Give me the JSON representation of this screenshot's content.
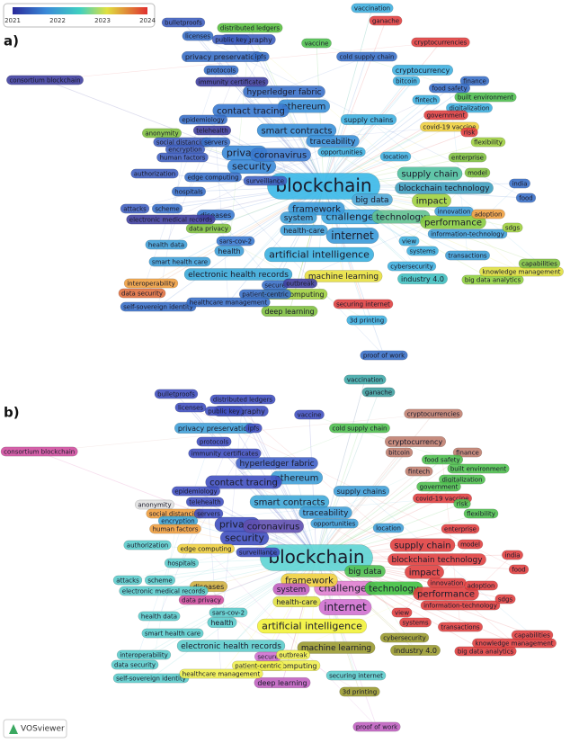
{
  "legend": {
    "ticks": [
      "2021",
      "2022",
      "2023",
      "2024"
    ]
  },
  "panels": [
    {
      "label": "a)",
      "nodes": [
        {
          "label": "blockchain",
          "color": "#3ab8e8"
        },
        {
          "label": "artificial intelligence",
          "color": "#3bb0e0"
        },
        {
          "label": "internet",
          "color": "#3a9ad9"
        },
        {
          "label": "challenges",
          "color": "#40a8e0"
        },
        {
          "label": "framework",
          "color": "#3a9ad9"
        },
        {
          "label": "technology",
          "color": "#60c090"
        },
        {
          "label": "performance",
          "color": "#88cc40"
        },
        {
          "label": "impact",
          "color": "#a0d040"
        },
        {
          "label": "supply chain",
          "color": "#50c0a0"
        },
        {
          "label": "blockchain technology",
          "color": "#40a0c0"
        },
        {
          "label": "security",
          "color": "#3a8ad8"
        },
        {
          "label": "privacy",
          "color": "#3a8ad8"
        },
        {
          "label": "coronavirus",
          "color": "#3a7ad0"
        },
        {
          "label": "smart contracts",
          "color": "#3a90d8"
        },
        {
          "label": "ethereum",
          "color": "#3a90d8"
        },
        {
          "label": "traceability",
          "color": "#3a90d8"
        },
        {
          "label": "contact tracing",
          "color": "#3a7ad0"
        },
        {
          "label": "hyperledger fabric",
          "color": "#3a70c8"
        },
        {
          "label": "big data",
          "color": "#50a8d8"
        },
        {
          "label": "system",
          "color": "#40a0d8"
        },
        {
          "label": "health-care",
          "color": "#40a0d8"
        },
        {
          "label": "electronic health records",
          "color": "#3aa8d8"
        },
        {
          "label": "machine learning",
          "color": "#e8e040"
        },
        {
          "label": "cloud computing",
          "color": "#a0d040"
        },
        {
          "label": "deep learning",
          "color": "#80c040"
        },
        {
          "label": "industry 4.0",
          "color": "#40c0c0"
        },
        {
          "label": "big data analytics",
          "color": "#90d040"
        },
        {
          "label": "knowledge management",
          "color": "#e0e040"
        },
        {
          "label": "cryptocurrency",
          "color": "#40b0e0"
        },
        {
          "label": "bitcoin",
          "color": "#40b0e0"
        },
        {
          "label": "cryptocurrencies",
          "color": "#e04040"
        },
        {
          "label": "vaccination",
          "color": "#40b0e0"
        },
        {
          "label": "ganache",
          "color": "#e04040"
        },
        {
          "label": "distributed ledgers",
          "color": "#5ac040"
        },
        {
          "label": "cryptography",
          "color": "#4060c0"
        },
        {
          "label": "bulletproofs",
          "color": "#4060c0"
        },
        {
          "label": "privacy preservation",
          "color": "#3a70c8"
        },
        {
          "label": "consortium blockchain",
          "color": "#4040a0"
        },
        {
          "label": "anonymity",
          "color": "#80c040"
        },
        {
          "label": "diseases",
          "color": "#3a7ad0"
        },
        {
          "label": "health",
          "color": "#40a0d8"
        },
        {
          "label": "sars-cov-2",
          "color": "#3a7ad0"
        },
        {
          "label": "data privacy",
          "color": "#80c040"
        },
        {
          "label": "data security",
          "color": "#e07040"
        },
        {
          "label": "interoperability",
          "color": "#f0a040"
        },
        {
          "label": "self-sovereign identity",
          "color": "#3a70c8"
        },
        {
          "label": "secure",
          "color": "#3a70c8"
        },
        {
          "label": "securing internet",
          "color": "#e04040"
        },
        {
          "label": "proof of work",
          "color": "#3a70c8"
        },
        {
          "label": "3d printing",
          "color": "#40b0e0"
        },
        {
          "label": "social distancing",
          "color": "#4060c0"
        },
        {
          "label": "encryption",
          "color": "#4060c0"
        },
        {
          "label": "human factors",
          "color": "#4060c0"
        },
        {
          "label": "authorization",
          "color": "#4060c0"
        },
        {
          "label": "electronic medical records",
          "color": "#4040a0"
        },
        {
          "label": "edge computing",
          "color": "#3a70c8"
        },
        {
          "label": "cybersecurity",
          "color": "#40b0e0"
        },
        {
          "label": "information-technology",
          "color": "#40a0d8"
        },
        {
          "label": "covid-19 vaccine",
          "color": "#f0d040"
        },
        {
          "label": "digitalization",
          "color": "#40b0e0"
        },
        {
          "label": "built environment",
          "color": "#50c050"
        },
        {
          "label": "fintech",
          "color": "#40b0e0"
        },
        {
          "label": "government",
          "color": "#e04040"
        },
        {
          "label": "food",
          "color": "#3a70c8"
        },
        {
          "label": "india",
          "color": "#3a70c8"
        },
        {
          "label": "surveillance",
          "color": "#4060c0"
        },
        {
          "label": "cold supply chain",
          "color": "#3a70c8"
        },
        {
          "label": "vaccine",
          "color": "#50c050"
        },
        {
          "label": "protocols",
          "color": "#3a70c8"
        },
        {
          "label": "ipfs",
          "color": "#3a70c8"
        },
        {
          "label": "licenses",
          "color": "#3a70c8"
        },
        {
          "label": "public key",
          "color": "#4060c0"
        },
        {
          "label": "immunity certificates",
          "color": "#4040a0"
        },
        {
          "label": "epidemiology",
          "color": "#3a70c8"
        },
        {
          "label": "telehealth",
          "color": "#4040a0"
        },
        {
          "label": "servers",
          "color": "#3a70c8"
        },
        {
          "label": "hospitals",
          "color": "#3a70c8"
        },
        {
          "label": "scheme",
          "color": "#3a70c8"
        },
        {
          "label": "attacks",
          "color": "#4060c0"
        },
        {
          "label": "health data",
          "color": "#40a0d8"
        },
        {
          "label": "smart health care",
          "color": "#40a0d8"
        },
        {
          "label": "patient-centric",
          "color": "#3a70c8"
        },
        {
          "label": "healthcare management",
          "color": "#3a70c8"
        },
        {
          "label": "outbreak",
          "color": "#4040a0"
        },
        {
          "label": "supply chains",
          "color": "#40b0e0"
        },
        {
          "label": "opportunities",
          "color": "#40b0e0"
        },
        {
          "label": "flexibility",
          "color": "#a0d040"
        },
        {
          "label": "model",
          "color": "#80c040"
        },
        {
          "label": "innovation",
          "color": "#40a0d8"
        },
        {
          "label": "adoption",
          "color": "#f0a040"
        },
        {
          "label": "transactions",
          "color": "#40a0d8"
        },
        {
          "label": "capabilities",
          "color": "#80c040"
        },
        {
          "label": "sdgs",
          "color": "#a0d040"
        },
        {
          "label": "systems",
          "color": "#40b0e0"
        },
        {
          "label": "view",
          "color": "#40b0e0"
        },
        {
          "label": "finance",
          "color": "#3a70c8"
        },
        {
          "label": "risk",
          "color": "#e04040"
        },
        {
          "label": "food safety",
          "color": "#3a70c8"
        },
        {
          "label": "enterprise",
          "color": "#80c040"
        },
        {
          "label": "location",
          "color": "#40b0e0"
        }
      ]
    },
    {
      "label": "b)",
      "nodes": [
        {
          "label": "blockchain",
          "color": "#5dd4d4"
        },
        {
          "label": "artificial intelligence",
          "color": "#f2f23a"
        },
        {
          "label": "internet",
          "color": "#d070d0"
        },
        {
          "label": "challenges",
          "color": "#e080d0"
        },
        {
          "label": "framework",
          "color": "#f0d040"
        },
        {
          "label": "technology",
          "color": "#40c040"
        },
        {
          "label": "performance",
          "color": "#e04040"
        },
        {
          "label": "impact",
          "color": "#e04040"
        },
        {
          "label": "supply chain",
          "color": "#e04040"
        },
        {
          "label": "blockchain technology",
          "color": "#e04040"
        },
        {
          "label": "security",
          "color": "#4050c0"
        },
        {
          "label": "privacy",
          "color": "#4050c0"
        },
        {
          "label": "coronavirus",
          "color": "#6050b0"
        },
        {
          "label": "smart contracts",
          "color": "#40a8d8"
        },
        {
          "label": "ethereum",
          "color": "#40a0d8"
        },
        {
          "label": "traceability",
          "color": "#40a0d8"
        },
        {
          "label": "contact tracing",
          "color": "#4050c0"
        },
        {
          "label": "hyperledger fabric",
          "color": "#4060c8"
        },
        {
          "label": "big data",
          "color": "#50c050"
        },
        {
          "label": "system",
          "color": "#c060c0"
        },
        {
          "label": "health-care",
          "color": "#e0e040"
        },
        {
          "label": "electronic health records",
          "color": "#5ccccc"
        },
        {
          "label": "machine learning",
          "color": "#9a9a30"
        },
        {
          "label": "cloud computing",
          "color": "#f0f050"
        },
        {
          "label": "deep learning",
          "color": "#c060c0"
        },
        {
          "label": "industry 4.0",
          "color": "#9a9a30"
        },
        {
          "label": "big data analytics",
          "color": "#e04040"
        },
        {
          "label": "knowledge management",
          "color": "#e04040"
        },
        {
          "label": "cryptocurrency",
          "color": "#c08070"
        },
        {
          "label": "bitcoin",
          "color": "#c08070"
        },
        {
          "label": "cryptocurrencies",
          "color": "#c08070"
        },
        {
          "label": "vaccination",
          "color": "#40a8a8"
        },
        {
          "label": "ganache",
          "color": "#40a0a0"
        },
        {
          "label": "distributed ledgers",
          "color": "#4050c0"
        },
        {
          "label": "cryptography",
          "color": "#4050c0"
        },
        {
          "label": "bulletproofs",
          "color": "#4050c0"
        },
        {
          "label": "privacy preservation",
          "color": "#40a0d8"
        },
        {
          "label": "consortium blockchain",
          "color": "#d050a0"
        },
        {
          "label": "anonymity",
          "color": "#e0e0e0"
        },
        {
          "label": "diseases",
          "color": "#d0b040"
        },
        {
          "label": "health",
          "color": "#5ccccc"
        },
        {
          "label": "sars-cov-2",
          "color": "#5ccccc"
        },
        {
          "label": "data privacy",
          "color": "#d050a0"
        },
        {
          "label": "data security",
          "color": "#5ccccc"
        },
        {
          "label": "interoperability",
          "color": "#5ccccc"
        },
        {
          "label": "self-sovereign identity",
          "color": "#5ccccc"
        },
        {
          "label": "secure",
          "color": "#d070d0"
        },
        {
          "label": "securing internet",
          "color": "#5ccccc"
        },
        {
          "label": "proof of work",
          "color": "#c060c0"
        },
        {
          "label": "3d printing",
          "color": "#9a9a30"
        },
        {
          "label": "social distancing",
          "color": "#f0a040"
        },
        {
          "label": "encryption",
          "color": "#40a8d8"
        },
        {
          "label": "human factors",
          "color": "#f0a040"
        },
        {
          "label": "authorization",
          "color": "#5ccccc"
        },
        {
          "label": "electronic medical records",
          "color": "#5ccccc"
        },
        {
          "label": "edge computing",
          "color": "#f0d040"
        },
        {
          "label": "cybersecurity",
          "color": "#9a9a30"
        },
        {
          "label": "information-technology",
          "color": "#e04040"
        },
        {
          "label": "covid-19 vaccine",
          "color": "#e04040"
        },
        {
          "label": "digitalization",
          "color": "#50c050"
        },
        {
          "label": "built environment",
          "color": "#50c050"
        },
        {
          "label": "fintech",
          "color": "#c08070"
        },
        {
          "label": "government",
          "color": "#50c050"
        },
        {
          "label": "food",
          "color": "#e04040"
        },
        {
          "label": "india",
          "color": "#e04040"
        },
        {
          "label": "surveillance",
          "color": "#4050c0"
        },
        {
          "label": "cold supply chain",
          "color": "#50c050"
        },
        {
          "label": "vaccine",
          "color": "#4050c0"
        },
        {
          "label": "protocols",
          "color": "#4050c0"
        },
        {
          "label": "ipfs",
          "color": "#4050c0"
        },
        {
          "label": "licenses",
          "color": "#4050c0"
        },
        {
          "label": "public key",
          "color": "#4050c0"
        },
        {
          "label": "immunity certificates",
          "color": "#4050c0"
        },
        {
          "label": "epidemiology",
          "color": "#4050c0"
        },
        {
          "label": "telehealth",
          "color": "#4050c0"
        },
        {
          "label": "servers",
          "color": "#4050c0"
        },
        {
          "label": "hospitals",
          "color": "#5ccccc"
        },
        {
          "label": "scheme",
          "color": "#5ccccc"
        },
        {
          "label": "attacks",
          "color": "#5ccccc"
        },
        {
          "label": "health data",
          "color": "#5ccccc"
        },
        {
          "label": "smart health care",
          "color": "#5ccccc"
        },
        {
          "label": "patient-centric",
          "color": "#f0f050"
        },
        {
          "label": "healthcare management",
          "color": "#f0f050"
        },
        {
          "label": "outbreak",
          "color": "#f0f050"
        },
        {
          "label": "supply chains",
          "color": "#40a0d8"
        },
        {
          "label": "opportunities",
          "color": "#40a0d8"
        },
        {
          "label": "flexibility",
          "color": "#50c050"
        },
        {
          "label": "model",
          "color": "#e04040"
        },
        {
          "label": "innovation",
          "color": "#e04040"
        },
        {
          "label": "adoption",
          "color": "#e04040"
        },
        {
          "label": "transactions",
          "color": "#e04040"
        },
        {
          "label": "capabilities",
          "color": "#e04040"
        },
        {
          "label": "sdgs",
          "color": "#e04040"
        },
        {
          "label": "systems",
          "color": "#e04040"
        },
        {
          "label": "view",
          "color": "#e04040"
        },
        {
          "label": "finance",
          "color": "#c08070"
        },
        {
          "label": "risk",
          "color": "#50c050"
        },
        {
          "label": "food safety",
          "color": "#50c050"
        },
        {
          "label": "enterprise",
          "color": "#e04040"
        },
        {
          "label": "location",
          "color": "#40a0d8"
        }
      ]
    }
  ],
  "logo": "VOSviewer"
}
